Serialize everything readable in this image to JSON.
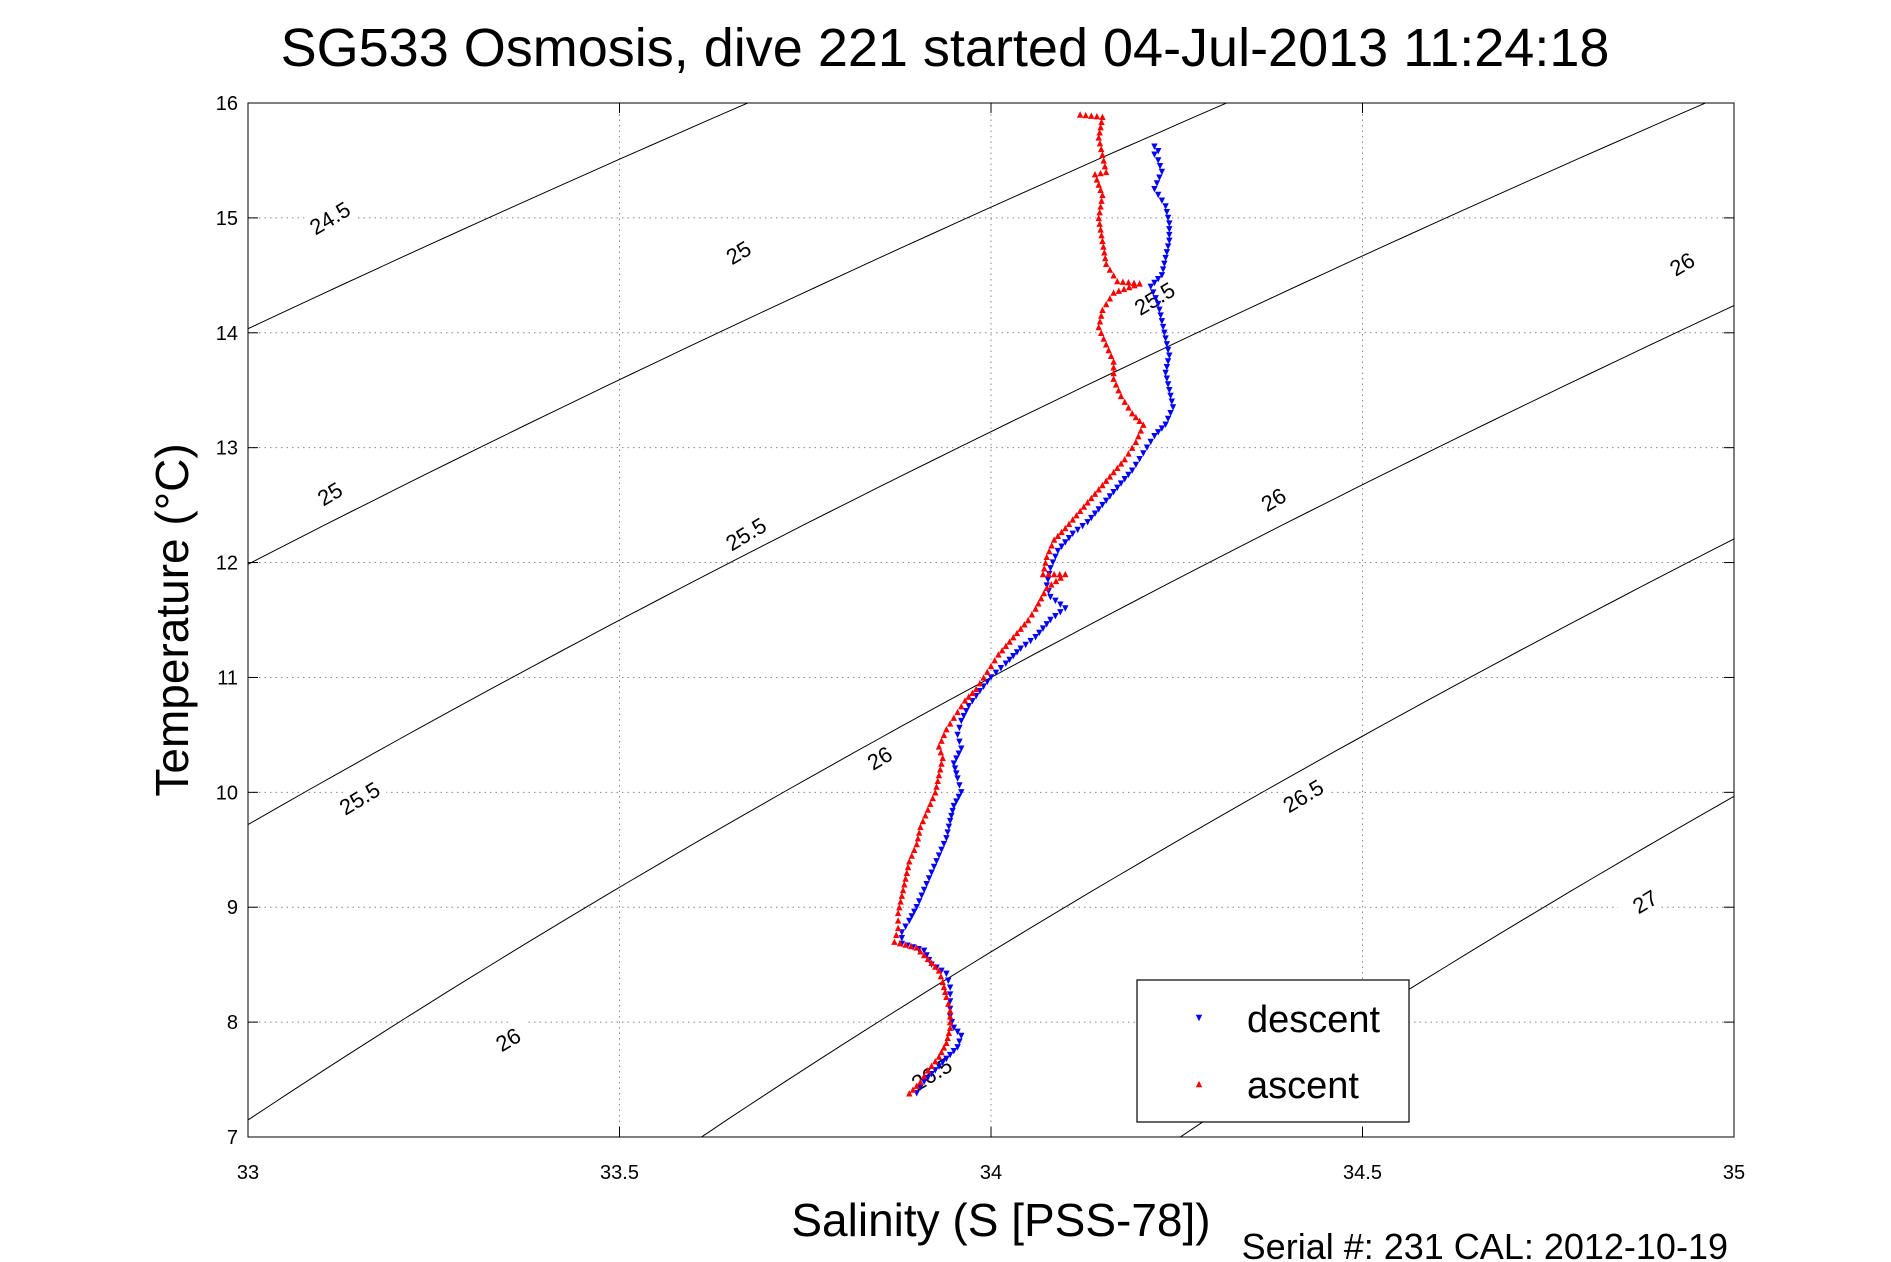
{
  "chart_data": {
    "type": "scatter",
    "title": "SG533 Osmosis, dive 221 started 04-Jul-2013 11:24:18",
    "xlabel": "Salinity (S [PSS-78])",
    "ylabel": "Temperature (°C)",
    "footer": "Serial #: 231  CAL: 2012-10-19",
    "xlim": [
      33,
      35
    ],
    "ylim": [
      7,
      16
    ],
    "xticks": [
      "33",
      "33.5",
      "34",
      "34.5",
      "35"
    ],
    "yticks": [
      "7",
      "8",
      "9",
      "10",
      "11",
      "12",
      "13",
      "14",
      "15",
      "16"
    ],
    "grid": true,
    "legend_position": "bottom-right",
    "density_contours": [
      {
        "sigma": 24.5,
        "labels": [
          {
            "text": "24.5",
            "x": 33.11,
            "y": 15.0
          }
        ]
      },
      {
        "sigma": 25,
        "labels": [
          {
            "text": "25",
            "x": 33.66,
            "y": 14.7
          },
          {
            "text": "25",
            "x": 33.11,
            "y": 12.6
          }
        ]
      },
      {
        "sigma": 25.5,
        "labels": [
          {
            "text": "25.5",
            "x": 34.22,
            "y": 14.3
          },
          {
            "text": "25.5",
            "x": 33.67,
            "y": 12.25
          },
          {
            "text": "25.5",
            "x": 33.15,
            "y": 9.95
          }
        ]
      },
      {
        "sigma": 26,
        "labels": [
          {
            "text": "26",
            "x": 34.93,
            "y": 14.6
          },
          {
            "text": "26",
            "x": 34.38,
            "y": 12.55
          },
          {
            "text": "26",
            "x": 33.85,
            "y": 10.3
          },
          {
            "text": "26",
            "x": 33.35,
            "y": 7.85
          }
        ]
      },
      {
        "sigma": 26.5,
        "labels": [
          {
            "text": "26.5",
            "x": 34.42,
            "y": 9.97
          },
          {
            "text": "26.5",
            "x": 33.92,
            "y": 7.55
          }
        ]
      },
      {
        "sigma": 27,
        "labels": [
          {
            "text": "27",
            "x": 34.88,
            "y": 9.05
          }
        ]
      }
    ],
    "series": [
      {
        "name": "descent",
        "color": "#0000ff",
        "marker": "triangle-down",
        "points": [
          [
            34.22,
            15.62
          ],
          [
            34.225,
            15.58
          ],
          [
            34.22,
            15.55
          ],
          [
            34.225,
            15.5
          ],
          [
            34.23,
            15.4
          ],
          [
            34.22,
            15.25
          ],
          [
            34.235,
            15.1
          ],
          [
            34.24,
            14.95
          ],
          [
            34.24,
            14.8
          ],
          [
            34.235,
            14.65
          ],
          [
            34.23,
            14.5
          ],
          [
            34.215,
            14.4
          ],
          [
            34.225,
            14.25
          ],
          [
            34.23,
            14.1
          ],
          [
            34.235,
            13.95
          ],
          [
            34.24,
            13.8
          ],
          [
            34.235,
            13.65
          ],
          [
            34.24,
            13.5
          ],
          [
            34.245,
            13.35
          ],
          [
            34.235,
            13.2
          ],
          [
            34.22,
            13.1
          ],
          [
            34.205,
            12.95
          ],
          [
            34.19,
            12.8
          ],
          [
            34.17,
            12.65
          ],
          [
            34.15,
            12.5
          ],
          [
            34.13,
            12.35
          ],
          [
            34.11,
            12.25
          ],
          [
            34.09,
            12.1
          ],
          [
            34.08,
            11.95
          ],
          [
            34.075,
            11.8
          ],
          [
            34.08,
            11.7
          ],
          [
            34.1,
            11.6
          ],
          [
            34.08,
            11.5
          ],
          [
            34.06,
            11.35
          ],
          [
            34.04,
            11.25
          ],
          [
            34.02,
            11.12
          ],
          [
            34.0,
            11.0
          ],
          [
            33.985,
            10.88
          ],
          [
            33.97,
            10.75
          ],
          [
            33.96,
            10.62
          ],
          [
            33.955,
            10.5
          ],
          [
            33.96,
            10.38
          ],
          [
            33.95,
            10.25
          ],
          [
            33.955,
            10.12
          ],
          [
            33.96,
            10.0
          ],
          [
            33.95,
            9.88
          ],
          [
            33.945,
            9.75
          ],
          [
            33.94,
            9.6
          ],
          [
            33.93,
            9.45
          ],
          [
            33.92,
            9.3
          ],
          [
            33.91,
            9.15
          ],
          [
            33.9,
            9.0
          ],
          [
            33.89,
            8.88
          ],
          [
            33.88,
            8.78
          ],
          [
            33.88,
            8.68
          ],
          [
            33.91,
            8.62
          ],
          [
            33.92,
            8.5
          ],
          [
            33.94,
            8.42
          ],
          [
            33.945,
            8.3
          ],
          [
            33.945,
            8.18
          ],
          [
            33.945,
            8.05
          ],
          [
            33.95,
            7.95
          ],
          [
            33.96,
            7.88
          ],
          [
            33.955,
            7.78
          ],
          [
            33.94,
            7.68
          ],
          [
            33.925,
            7.58
          ],
          [
            33.91,
            7.48
          ],
          [
            33.9,
            7.38
          ]
        ]
      },
      {
        "name": "ascent",
        "color": "#ff0000",
        "marker": "triangle-up",
        "points": [
          [
            34.12,
            15.9
          ],
          [
            34.15,
            15.88
          ],
          [
            34.145,
            15.7
          ],
          [
            34.15,
            15.55
          ],
          [
            34.155,
            15.4
          ],
          [
            34.14,
            15.38
          ],
          [
            34.15,
            15.2
          ],
          [
            34.145,
            15.0
          ],
          [
            34.15,
            14.8
          ],
          [
            34.155,
            14.6
          ],
          [
            34.17,
            14.45
          ],
          [
            34.2,
            14.43
          ],
          [
            34.165,
            14.35
          ],
          [
            34.15,
            14.2
          ],
          [
            34.145,
            14.05
          ],
          [
            34.155,
            13.9
          ],
          [
            34.165,
            13.75
          ],
          [
            34.165,
            13.6
          ],
          [
            34.175,
            13.45
          ],
          [
            34.19,
            13.3
          ],
          [
            34.205,
            13.2
          ],
          [
            34.195,
            13.05
          ],
          [
            34.18,
            12.9
          ],
          [
            34.16,
            12.75
          ],
          [
            34.14,
            12.6
          ],
          [
            34.12,
            12.45
          ],
          [
            34.1,
            12.3
          ],
          [
            34.085,
            12.2
          ],
          [
            34.075,
            12.05
          ],
          [
            34.07,
            11.9
          ],
          [
            34.1,
            11.9
          ],
          [
            34.075,
            11.78
          ],
          [
            34.06,
            11.6
          ],
          [
            34.05,
            11.5
          ],
          [
            34.03,
            11.35
          ],
          [
            34.01,
            11.2
          ],
          [
            33.995,
            11.05
          ],
          [
            33.98,
            10.9
          ],
          [
            33.965,
            10.8
          ],
          [
            33.955,
            10.7
          ],
          [
            33.94,
            10.55
          ],
          [
            33.93,
            10.4
          ],
          [
            33.935,
            10.3
          ],
          [
            33.93,
            10.15
          ],
          [
            33.925,
            10.0
          ],
          [
            33.915,
            9.85
          ],
          [
            33.905,
            9.7
          ],
          [
            33.9,
            9.55
          ],
          [
            33.89,
            9.4
          ],
          [
            33.885,
            9.25
          ],
          [
            33.88,
            9.1
          ],
          [
            33.875,
            8.95
          ],
          [
            33.875,
            8.82
          ],
          [
            33.87,
            8.7
          ],
          [
            33.9,
            8.65
          ],
          [
            33.915,
            8.55
          ],
          [
            33.93,
            8.45
          ],
          [
            33.935,
            8.35
          ],
          [
            33.94,
            8.22
          ],
          [
            33.945,
            8.1
          ],
          [
            33.945,
            7.95
          ],
          [
            33.94,
            7.82
          ],
          [
            33.93,
            7.7
          ],
          [
            33.915,
            7.58
          ],
          [
            33.905,
            7.48
          ],
          [
            33.89,
            7.38
          ]
        ]
      }
    ]
  }
}
